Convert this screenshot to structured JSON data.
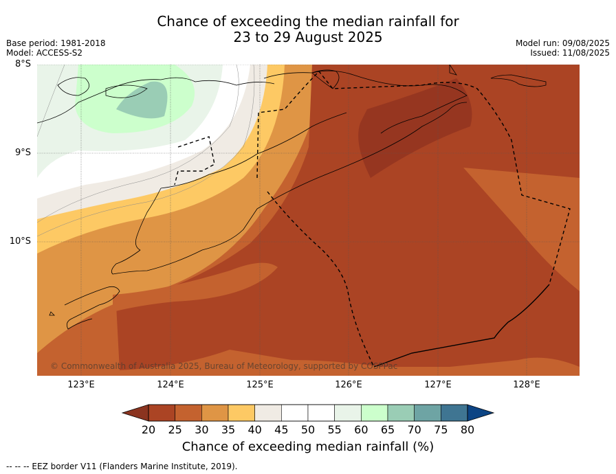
{
  "title": "Chance of exceeding the median rainfall for\n23 to 29 August 2025",
  "meta_left": {
    "base_period": "Base period: 1981-2018",
    "model": "Model: ACCESS-S2"
  },
  "meta_right": {
    "model_run": "Model run: 09/08/2025",
    "issued": "Issued: 11/08/2025"
  },
  "latitude_labels": [
    "8°S",
    "9°S",
    "10°S"
  ],
  "longitude_labels": [
    "123°E",
    "124°E",
    "125°E",
    "126°E",
    "127°E",
    "128°E"
  ],
  "copyright": "© Commonwealth of Australia 2025, Bureau of Meteorology, supported by COSPPac",
  "colorbar": {
    "ticks": [
      "20",
      "25",
      "30",
      "35",
      "40",
      "45",
      "50",
      "55",
      "60",
      "65",
      "70",
      "75",
      "80"
    ],
    "colors": [
      "#ab4424",
      "#c4622f",
      "#df9545",
      "#fdc964",
      "#f0ebe4",
      "#ffffff",
      "#ffffff",
      "#e9f4e9",
      "#ccffcc",
      "#9acdb5",
      "#6ea4a4",
      "#3f7592"
    ],
    "under_color": "#8b3420",
    "over_color": "#0c4484",
    "label": "Chance of exceeding median rainfall (%)"
  },
  "footnote": "--  --  -- EEZ border V11 (Flanders Marine Institute, 2019)."
}
